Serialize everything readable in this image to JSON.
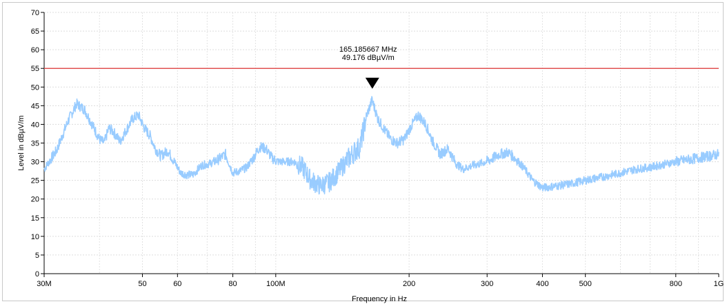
{
  "chart_data": {
    "type": "line",
    "xlabel": "Frequency in Hz",
    "ylabel": "Level in dBµV/m",
    "x_scale": "log",
    "xlim": [
      30000000,
      1000000000
    ],
    "ylim": [
      0,
      70
    ],
    "y_ticks": [
      0,
      5,
      10,
      15,
      20,
      25,
      30,
      35,
      40,
      45,
      50,
      55,
      60,
      65,
      70
    ],
    "x_ticks": [
      {
        "value": 30000000,
        "label": "30M"
      },
      {
        "value": 50000000,
        "label": "50"
      },
      {
        "value": 60000000,
        "label": "60"
      },
      {
        "value": 80000000,
        "label": "80"
      },
      {
        "value": 100000000,
        "label": "100M"
      },
      {
        "value": 200000000,
        "label": "200"
      },
      {
        "value": 300000000,
        "label": "300"
      },
      {
        "value": 400000000,
        "label": "400"
      },
      {
        "value": 500000000,
        "label": "500"
      },
      {
        "value": 800000000,
        "label": "800"
      },
      {
        "value": 1000000000,
        "label": "1G"
      }
    ],
    "grid": true,
    "limit_line": {
      "value": 55,
      "color": "#e05050"
    },
    "marker": {
      "frequency": 165185667,
      "level": 49.176,
      "label_frequency": "165.185667 MHz",
      "label_level": "49.176 dBµV/m"
    },
    "series": [
      {
        "color": "#99ccff",
        "x": [
          30000000,
          32000000,
          34000000,
          35500000,
          37000000,
          38500000,
          40000000,
          41000000,
          42000000,
          43000000,
          44500000,
          46000000,
          47500000,
          49000000,
          50500000,
          52000000,
          53500000,
          55000000,
          57000000,
          59000000,
          61000000,
          63000000,
          65000000,
          68000000,
          71000000,
          74000000,
          77000000,
          80000000,
          83000000,
          86000000,
          89000000,
          92000000,
          95000000,
          98000000,
          101000000,
          105000000,
          110000000,
          115000000,
          120000000,
          126000000,
          132000000,
          138000000,
          144000000,
          150000000,
          155000000,
          160000000,
          165000000,
          170000000,
          176000000,
          182000000,
          188000000,
          195000000,
          202000000,
          210000000,
          218000000,
          226000000,
          235000000,
          245000000,
          255000000,
          265000000,
          278000000,
          290000000,
          305000000,
          320000000,
          335000000,
          350000000,
          365000000,
          380000000,
          400000000,
          430000000,
          460000000,
          500000000,
          550000000,
          600000000,
          650000000,
          700000000,
          800000000,
          900000000,
          1000000000
        ],
        "values": [
          28,
          33,
          41,
          45.5,
          44,
          40,
          36,
          35,
          39,
          38,
          35.5,
          38.5,
          41.5,
          42.5,
          39,
          37,
          33.5,
          31.5,
          33,
          30,
          27,
          26.5,
          26.5,
          29,
          29.5,
          30.5,
          32,
          27,
          27.5,
          28.5,
          31,
          34,
          33.5,
          31,
          30,
          30,
          30,
          28.5,
          25,
          23.5,
          24.5,
          27,
          30,
          32.5,
          34,
          42,
          46.5,
          41.5,
          38.5,
          36,
          35,
          36,
          39.5,
          42.5,
          40,
          35.5,
          32,
          33.5,
          29.5,
          28,
          29,
          29.5,
          30.5,
          32,
          32.5,
          30.5,
          28,
          25,
          23,
          23.5,
          24,
          25,
          26,
          27,
          28,
          28.5,
          30,
          31,
          32
        ]
      }
    ]
  }
}
